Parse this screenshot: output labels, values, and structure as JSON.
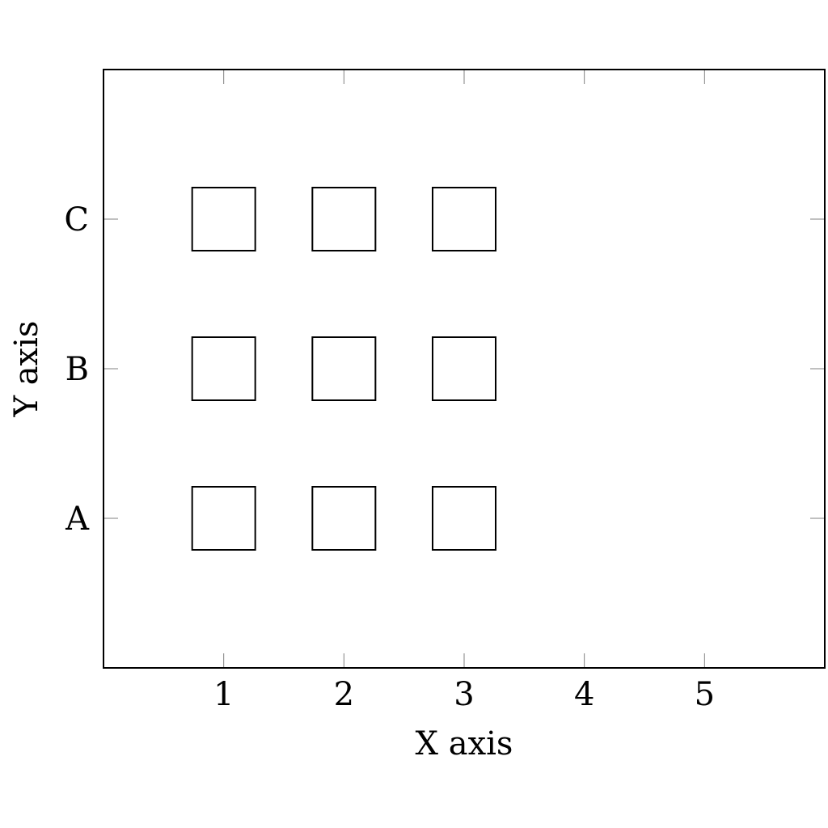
{
  "chart_data": {
    "type": "scatter",
    "marker": "square",
    "xlabel": "X axis",
    "ylabel": "Y axis",
    "xlim": [
      0,
      6
    ],
    "ylim": [
      0,
      4
    ],
    "x_ticks": [
      1,
      2,
      3,
      4,
      5
    ],
    "y_categories": [
      "A",
      "B",
      "C"
    ],
    "points": [
      {
        "x": 1,
        "y": "A"
      },
      {
        "x": 2,
        "y": "A"
      },
      {
        "x": 3,
        "y": "A"
      },
      {
        "x": 1,
        "y": "B"
      },
      {
        "x": 2,
        "y": "B"
      },
      {
        "x": 3,
        "y": "B"
      },
      {
        "x": 1,
        "y": "C"
      },
      {
        "x": 2,
        "y": "C"
      },
      {
        "x": 3,
        "y": "C"
      }
    ],
    "grid": false,
    "colors": {
      "frame": "#000000",
      "marker_stroke": "#000000",
      "marker_fill": "#ffffff",
      "tick": "#808080"
    }
  }
}
